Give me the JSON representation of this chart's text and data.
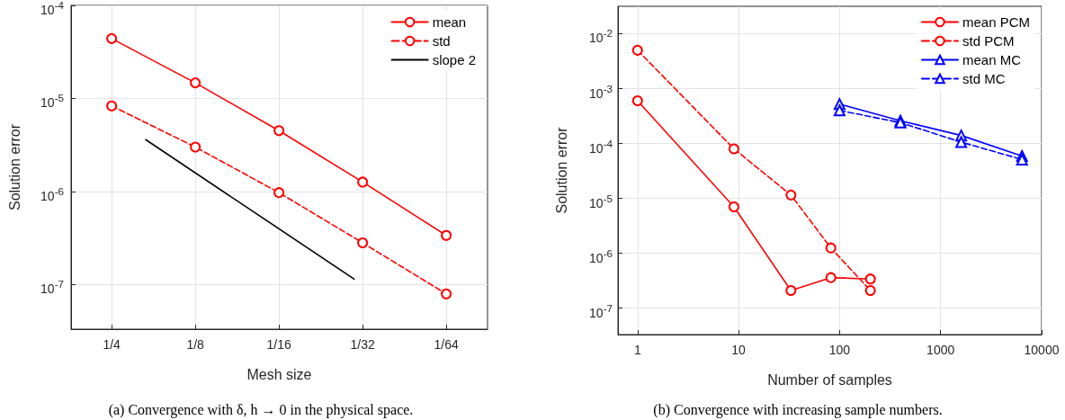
{
  "chart_data": [
    {
      "type": "line",
      "xlabel": "Mesh size",
      "ylabel": "Solution error",
      "log": "xy",
      "grid": true,
      "legend": "top right",
      "xlim": [
        0.35,
        0.0111
      ],
      "xticks": [
        {
          "value": 0.25,
          "label": "1/4"
        },
        {
          "value": 0.125,
          "label": "1/8"
        },
        {
          "value": 0.0625,
          "label": "1/16"
        },
        {
          "value": 0.03125,
          "label": "1/32"
        },
        {
          "value": 0.015625,
          "label": "1/64"
        }
      ],
      "ylim": [
        3.3e-08,
        0.0001
      ],
      "yticks": [
        {
          "value": 1e-07,
          "label": "10$^{-7}$"
        },
        {
          "value": 1e-06,
          "label": "10$^{-6}$"
        },
        {
          "value": 1e-05,
          "label": "10$^{-5}$"
        },
        {
          "value": 0.0001,
          "label": "10$^{-4}$"
        }
      ],
      "x": [
        0.25,
        0.125,
        0.0625,
        0.03125,
        0.015625
      ],
      "series": [
        {
          "name": "mean",
          "color": "#ff0000",
          "marker": "circle",
          "line_style": "solid",
          "values": [
            4.4e-05,
            1.47e-05,
            4.5e-06,
            1.26e-06,
            3.36e-07
          ]
        },
        {
          "name": "std",
          "color": "#ff0000",
          "marker": "circle",
          "line_style": "dashed",
          "values": [
            8.3e-06,
            3e-06,
            9.7e-07,
            2.8e-07,
            7.9e-08
          ]
        },
        {
          "name": "slope 2",
          "color": "#000000",
          "marker": "none",
          "line_style": "solid",
          "x": [
            0.1886,
            0.0335
          ],
          "values": [
            3.6e-06,
            1.14e-07
          ]
        }
      ],
      "annotations": [
        "(a) Convergence with δ, h → 0 in the physical space."
      ]
    },
    {
      "type": "line",
      "xlabel": "Number of samples",
      "ylabel": "Solution error",
      "log": "xy",
      "grid": true,
      "legend": "top right",
      "xlim": [
        0.64,
        10000
      ],
      "xticks": [
        1,
        10,
        100,
        1000,
        10000
      ],
      "ylim": [
        3.3e-08,
        0.0316
      ],
      "yticks": [
        {
          "value": 1e-07,
          "label": "10$^{-7}$"
        },
        {
          "value": 1e-06,
          "label": "10$^{-6}$"
        },
        {
          "value": 1e-05,
          "label": "10$^{-5}$"
        },
        {
          "value": 0.0001,
          "label": "10$^{-4}$"
        },
        {
          "value": 0.001,
          "label": "10$^{-3}$"
        },
        {
          "value": 0.01,
          "label": "10$^{-2}$"
        }
      ],
      "series": [
        {
          "name": "mean PCM",
          "color": "#ff0000",
          "marker": "circle",
          "line_style": "solid",
          "x": [
            1,
            9,
            33,
            82,
            202
          ],
          "values": [
            0.0006,
            7e-06,
            2.1e-07,
            3.6e-07,
            3.4e-07
          ]
        },
        {
          "name": "std PCM",
          "color": "#ff0000",
          "marker": "circle",
          "line_style": "dashed",
          "x": [
            1,
            9,
            33,
            82,
            202
          ],
          "values": [
            0.005,
            8e-05,
            1.15e-05,
            1.25e-06,
            2.1e-07
          ]
        },
        {
          "name": "mean MC",
          "color": "#0000ff",
          "marker": "triangle",
          "line_style": "solid",
          "x": [
            100,
            400,
            1600,
            6400
          ],
          "values": [
            0.00052,
            0.00026,
            0.00014,
            5.9e-05
          ]
        },
        {
          "name": "std MC",
          "color": "#0000ff",
          "marker": "triangle",
          "line_style": "dashed",
          "x": [
            100,
            400,
            1600,
            6400
          ],
          "values": [
            0.0004,
            0.00024,
            0.000106,
            5.1e-05
          ]
        }
      ],
      "annotations": [
        "(b) Convergence with increasing sample numbers."
      ]
    }
  ]
}
